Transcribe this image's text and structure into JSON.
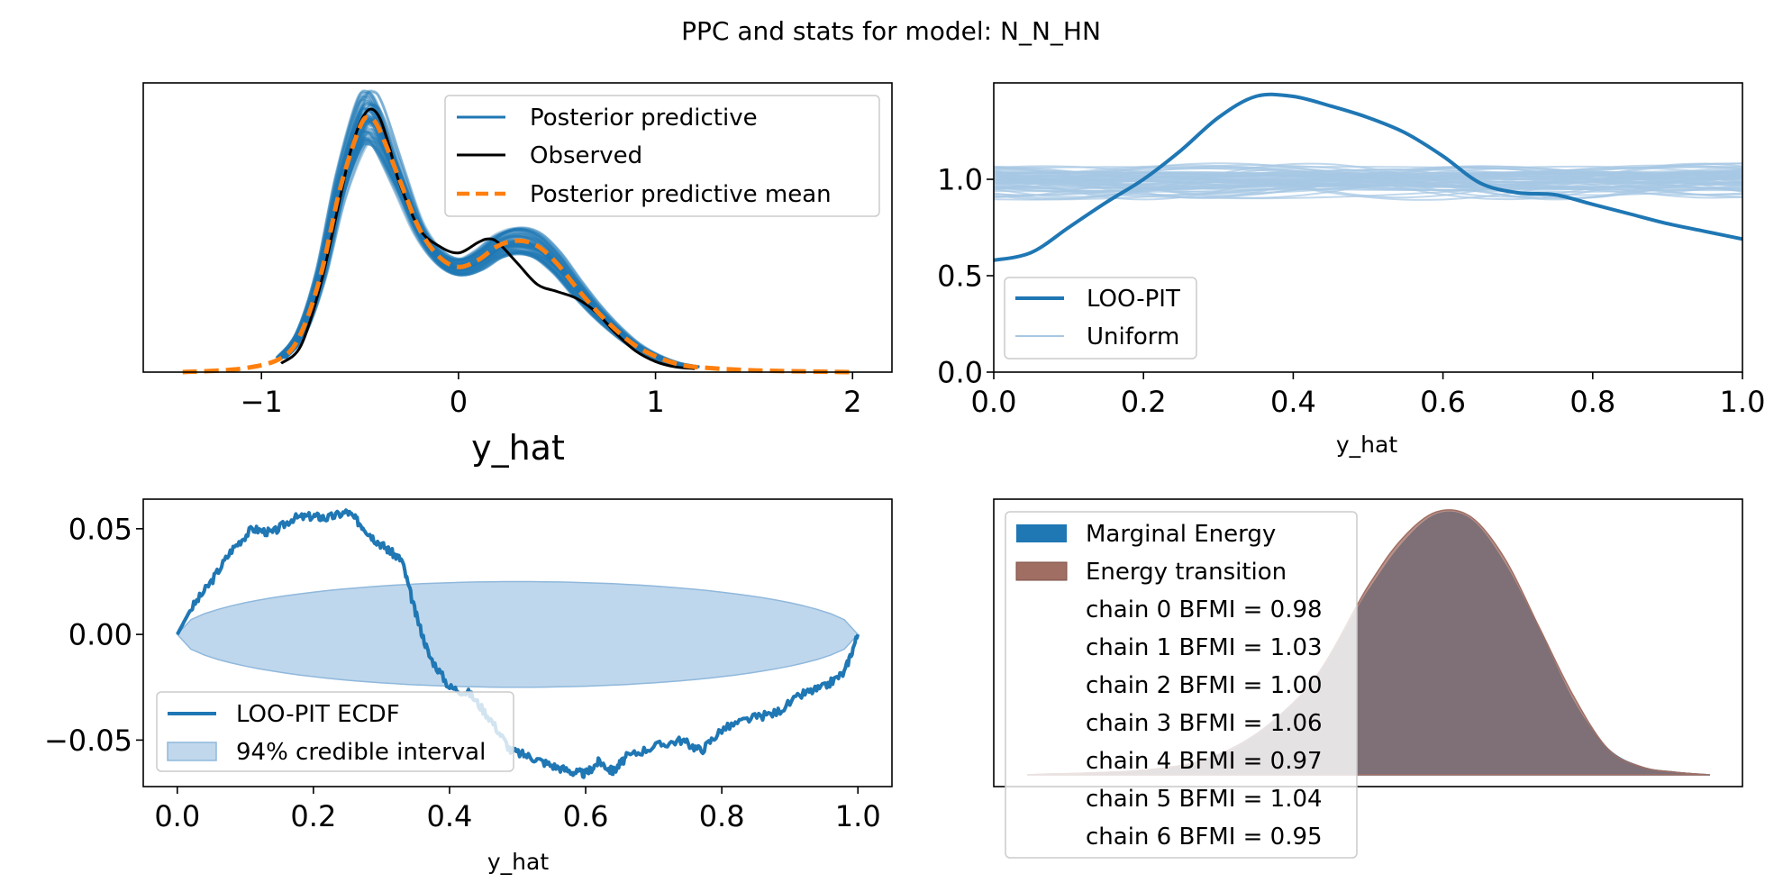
{
  "figure": {
    "title": "PPC and stats for model: N_N_HN"
  },
  "colors": {
    "blue": "#1f77b4",
    "light_blue": "#a6c8e4",
    "orange": "#ff7f0e",
    "black": "#000000",
    "brown": "#a06e63",
    "overlap": "#705a5e"
  },
  "chart_data": [
    {
      "id": "ppc",
      "type": "line",
      "xlabel": "y_hat",
      "ylabel": "",
      "xlim": [
        -1.6,
        2.2
      ],
      "ylim": [
        0,
        1.65
      ],
      "xticks": [
        -1,
        0,
        1,
        2
      ],
      "xtick_labels": [
        "−1",
        "0",
        "1",
        "2"
      ],
      "legend_position": "upper right",
      "legend": [
        "Posterior predictive",
        "Observed",
        "Posterior predictive mean"
      ],
      "series": [
        {
          "name": "Observed",
          "x": [
            -0.9,
            -0.8,
            -0.7,
            -0.6,
            -0.55,
            -0.5,
            -0.45,
            -0.4,
            -0.35,
            -0.3,
            -0.2,
            -0.1,
            0.0,
            0.1,
            0.15,
            0.2,
            0.3,
            0.4,
            0.5,
            0.6,
            0.7,
            0.8,
            0.9,
            1.0,
            1.1,
            1.2
          ],
          "values": [
            0.05,
            0.15,
            0.5,
            1.0,
            1.25,
            1.42,
            1.5,
            1.45,
            1.28,
            1.08,
            0.82,
            0.72,
            0.68,
            0.74,
            0.76,
            0.74,
            0.62,
            0.5,
            0.46,
            0.42,
            0.34,
            0.22,
            0.12,
            0.06,
            0.03,
            0.02
          ]
        },
        {
          "name": "Posterior predictive mean",
          "x": [
            -1.4,
            -1.1,
            -0.9,
            -0.8,
            -0.7,
            -0.6,
            -0.5,
            -0.45,
            -0.4,
            -0.3,
            -0.2,
            -0.1,
            0.0,
            0.1,
            0.2,
            0.3,
            0.4,
            0.5,
            0.6,
            0.7,
            0.8,
            0.9,
            1.0,
            1.1,
            1.2,
            1.5,
            2.0
          ],
          "values": [
            0.0,
            0.02,
            0.08,
            0.22,
            0.55,
            1.05,
            1.4,
            1.45,
            1.38,
            1.1,
            0.82,
            0.66,
            0.6,
            0.64,
            0.72,
            0.75,
            0.72,
            0.62,
            0.48,
            0.35,
            0.24,
            0.15,
            0.09,
            0.05,
            0.03,
            0.01,
            0.0
          ]
        }
      ]
    },
    {
      "id": "loo-pit",
      "type": "line",
      "xlabel": "y_hat",
      "ylabel": "",
      "xlim": [
        0,
        1
      ],
      "ylim": [
        0,
        1.5
      ],
      "xticks": [
        0.0,
        0.2,
        0.4,
        0.6,
        0.8,
        1.0
      ],
      "xtick_labels": [
        "0.0",
        "0.2",
        "0.4",
        "0.6",
        "0.8",
        "1.0"
      ],
      "yticks": [
        0.0,
        0.5,
        1.0
      ],
      "ytick_labels": [
        "0.0",
        "0.5",
        "1.0"
      ],
      "legend_position": "lower left",
      "legend": [
        "LOO-PIT",
        "Uniform"
      ],
      "series": [
        {
          "name": "LOO-PIT",
          "x": [
            0.0,
            0.05,
            0.1,
            0.15,
            0.2,
            0.25,
            0.3,
            0.35,
            0.4,
            0.45,
            0.5,
            0.55,
            0.6,
            0.65,
            0.7,
            0.75,
            0.8,
            0.85,
            0.9,
            0.95,
            1.0
          ],
          "values": [
            0.58,
            0.62,
            0.75,
            0.88,
            1.0,
            1.15,
            1.32,
            1.43,
            1.43,
            1.38,
            1.32,
            1.24,
            1.12,
            0.98,
            0.93,
            0.92,
            0.87,
            0.82,
            0.77,
            0.73,
            0.69
          ]
        }
      ]
    },
    {
      "id": "loo-pit-ecdf",
      "type": "line",
      "xlabel": "y_hat",
      "ylabel": "",
      "xlim": [
        -0.05,
        1.05
      ],
      "ylim": [
        -0.072,
        0.064
      ],
      "xticks": [
        0.0,
        0.2,
        0.4,
        0.6,
        0.8,
        1.0
      ],
      "xtick_labels": [
        "0.0",
        "0.2",
        "0.4",
        "0.6",
        "0.8",
        "1.0"
      ],
      "yticks": [
        -0.05,
        0.0,
        0.05
      ],
      "ytick_labels": [
        "−0.05",
        "0.00",
        "0.05"
      ],
      "legend_position": "lower left",
      "legend": [
        "LOO-PIT ECDF",
        "94% credible interval"
      ],
      "series": [
        {
          "name": "LOO-PIT ECDF",
          "x": [
            0.0,
            0.02,
            0.05,
            0.08,
            0.11,
            0.14,
            0.17,
            0.2,
            0.22,
            0.25,
            0.27,
            0.29,
            0.31,
            0.33,
            0.35,
            0.37,
            0.4,
            0.43,
            0.46,
            0.49,
            0.52,
            0.55,
            0.58,
            0.6,
            0.62,
            0.64,
            0.66,
            0.7,
            0.74,
            0.77,
            0.8,
            0.84,
            0.88,
            0.92,
            0.95,
            0.98,
            1.0
          ],
          "values": [
            0.0,
            0.012,
            0.025,
            0.04,
            0.05,
            0.048,
            0.055,
            0.056,
            0.055,
            0.058,
            0.052,
            0.045,
            0.04,
            0.035,
            0.01,
            -0.01,
            -0.025,
            -0.028,
            -0.04,
            -0.055,
            -0.058,
            -0.062,
            -0.065,
            -0.066,
            -0.06,
            -0.065,
            -0.058,
            -0.053,
            -0.05,
            -0.055,
            -0.045,
            -0.04,
            -0.037,
            -0.028,
            -0.025,
            -0.018,
            0.0
          ]
        }
      ],
      "interval_halfwidth": 0.025
    },
    {
      "id": "energy",
      "type": "area",
      "xlabel": "",
      "ylabel": "",
      "legend_position": "upper left",
      "legend": [
        "Marginal Energy",
        "Energy transition"
      ],
      "series": [
        {
          "name": "Marginal Energy",
          "x": [
            0.0,
            0.25,
            0.4,
            0.5,
            0.55,
            0.6,
            0.65,
            0.7,
            0.75,
            0.8,
            0.85,
            0.9,
            0.95,
            1.0
          ],
          "values": [
            0.0,
            0.05,
            0.3,
            0.7,
            0.88,
            0.99,
            0.97,
            0.8,
            0.55,
            0.28,
            0.1,
            0.03,
            0.01,
            0.0
          ]
        },
        {
          "name": "Energy transition",
          "x": [
            0.0,
            0.25,
            0.4,
            0.5,
            0.55,
            0.6,
            0.65,
            0.7,
            0.75,
            0.8,
            0.85,
            0.9,
            0.95,
            1.0
          ],
          "values": [
            0.0,
            0.05,
            0.3,
            0.72,
            0.9,
            1.0,
            0.98,
            0.82,
            0.56,
            0.3,
            0.1,
            0.03,
            0.01,
            0.0
          ]
        }
      ],
      "bfmi": [
        {
          "chain": "0",
          "value": "0.98"
        },
        {
          "chain": "1",
          "value": "1.03"
        },
        {
          "chain": "2",
          "value": "1.00"
        },
        {
          "chain": "3",
          "value": "1.06"
        },
        {
          "chain": "4",
          "value": "0.97"
        },
        {
          "chain": "5",
          "value": "1.04"
        },
        {
          "chain": "6",
          "value": "0.95"
        }
      ]
    }
  ]
}
